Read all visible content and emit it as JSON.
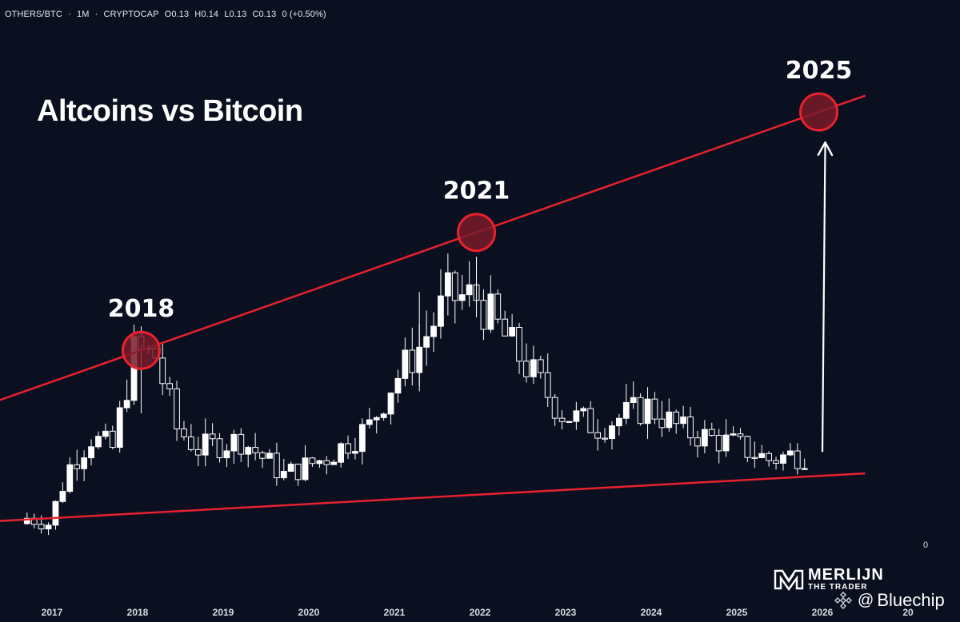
{
  "header": {
    "symbol": "OTHERS/BTC",
    "sep1": "·",
    "interval": "1M",
    "sep2": "·",
    "exchange": "CRYPTOCAP",
    "open": "O0.13",
    "high": "H0.14",
    "low": "L0.13",
    "close": "C0.13",
    "change": "0 (+0.50%)"
  },
  "title": "Altcoins vs Bitcoin",
  "zero_label": "0",
  "brand": {
    "name": "MERLIJN",
    "sub": "THE TRADER"
  },
  "source": {
    "at": "@",
    "name": "Bluechip"
  },
  "colors": {
    "background": "#0b1020",
    "trendline": "#e8212e",
    "highlight_fill": "#7a1a2a",
    "candle": "#ffffff"
  },
  "chart_data": {
    "type": "candlestick",
    "interval": "monthly",
    "xlabel": "",
    "ylabel": "",
    "x_ticks": [
      "2017",
      "2018",
      "2019",
      "2020",
      "2021",
      "2022",
      "2023",
      "2024",
      "2025",
      "2026",
      "20"
    ],
    "y_axis_visible_ticks": [
      "0"
    ],
    "series_ohlc_approx": [
      {
        "date": "2016-10",
        "o": 0.1,
        "h": 0.11,
        "l": 0.095,
        "c": 0.105
      },
      {
        "date": "2017-01",
        "o": 0.101,
        "h": 0.104,
        "l": 0.098,
        "c": 0.1
      },
      {
        "date": "2017-04",
        "o": 0.105,
        "h": 0.158,
        "l": 0.103,
        "c": 0.152
      },
      {
        "date": "2017-07",
        "o": 0.182,
        "h": 0.202,
        "l": 0.166,
        "c": 0.178
      },
      {
        "date": "2017-10",
        "o": 0.176,
        "h": 0.19,
        "l": 0.162,
        "c": 0.168
      },
      {
        "date": "2018-01",
        "o": 0.212,
        "h": 0.262,
        "l": 0.2,
        "c": 0.255
      },
      {
        "date": "2018-04",
        "o": 0.215,
        "h": 0.26,
        "l": 0.205,
        "c": 0.252
      },
      {
        "date": "2018-07",
        "o": 0.2,
        "h": 0.21,
        "l": 0.18,
        "c": 0.186
      },
      {
        "date": "2018-10",
        "o": 0.176,
        "h": 0.18,
        "l": 0.164,
        "c": 0.168
      },
      {
        "date": "2019-04",
        "o": 0.168,
        "h": 0.182,
        "l": 0.16,
        "c": 0.176
      },
      {
        "date": "2019-10",
        "o": 0.15,
        "h": 0.156,
        "l": 0.14,
        "c": 0.144
      },
      {
        "date": "2020-04",
        "o": 0.158,
        "h": 0.164,
        "l": 0.152,
        "c": 0.16
      },
      {
        "date": "2020-10",
        "o": 0.178,
        "h": 0.194,
        "l": 0.172,
        "c": 0.188
      },
      {
        "date": "2021-01",
        "o": 0.19,
        "h": 0.23,
        "l": 0.185,
        "c": 0.225
      },
      {
        "date": "2021-05",
        "o": 0.255,
        "h": 0.3,
        "l": 0.225,
        "c": 0.26
      },
      {
        "date": "2021-09",
        "o": 0.27,
        "h": 0.318,
        "l": 0.262,
        "c": 0.305
      },
      {
        "date": "2022-01",
        "o": 0.32,
        "h": 0.342,
        "l": 0.3,
        "c": 0.305
      },
      {
        "date": "2022-06",
        "o": 0.235,
        "h": 0.275,
        "l": 0.225,
        "c": 0.26
      },
      {
        "date": "2023-01",
        "o": 0.21,
        "h": 0.222,
        "l": 0.192,
        "c": 0.2
      },
      {
        "date": "2023-06",
        "o": 0.19,
        "h": 0.198,
        "l": 0.182,
        "c": 0.188
      },
      {
        "date": "2024-01",
        "o": 0.21,
        "h": 0.22,
        "l": 0.196,
        "c": 0.206
      },
      {
        "date": "2024-06",
        "o": 0.196,
        "h": 0.204,
        "l": 0.18,
        "c": 0.184
      },
      {
        "date": "2025-01",
        "o": 0.178,
        "h": 0.192,
        "l": 0.168,
        "c": 0.172
      },
      {
        "date": "2025-06",
        "o": 0.145,
        "h": 0.162,
        "l": 0.142,
        "c": 0.158
      },
      {
        "date": "2025-09",
        "o": 0.16,
        "h": 0.166,
        "l": 0.156,
        "c": 0.162
      }
    ],
    "annotations": [
      {
        "type": "label",
        "text": "2018"
      },
      {
        "type": "label",
        "text": "2021"
      },
      {
        "type": "label",
        "text": "2025"
      },
      {
        "type": "circle",
        "date": "2018-01"
      },
      {
        "type": "circle",
        "date": "2021-12"
      },
      {
        "type": "circle",
        "date": "2025-12"
      },
      {
        "type": "trendline",
        "name": "upper resistance",
        "from": "2016-09",
        "to": "2026-07"
      },
      {
        "type": "trendline",
        "name": "lower support",
        "from": "2016-09",
        "to": "2026-07"
      },
      {
        "type": "arrow",
        "from": "2025-09",
        "to": "2025-12"
      }
    ]
  }
}
